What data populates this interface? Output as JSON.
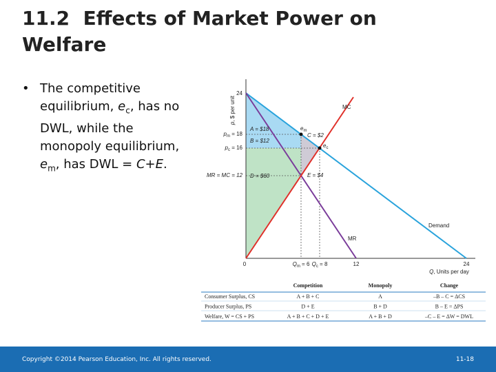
{
  "header": {
    "title": "11.2  Effects of Market Power on Welfare"
  },
  "bullet": {
    "parts": [
      {
        "text": "The competitive equilibrium, "
      },
      {
        "text": "e",
        "italic": true
      },
      {
        "text": "c",
        "sub": true
      },
      {
        "text": ", has no DWL, while the monopoly equilibrium, "
      },
      {
        "text": "e",
        "italic": true
      },
      {
        "text": "m",
        "sub": true
      },
      {
        "text": ", has DWL = "
      },
      {
        "text": "C+E",
        "italic": true
      },
      {
        "text": "."
      }
    ]
  },
  "graph": {
    "labels": [
      {
        "parts": [
          {
            "text": "p",
            "italic": true
          },
          {
            "text": ", $ per unit"
          }
        ]
      },
      {
        "parts": [
          {
            "text": "24"
          }
        ]
      },
      {
        "parts": [
          {
            "text": "p",
            "italic": true
          },
          {
            "text": "m",
            "sub": true
          },
          {
            "text": " = 18"
          }
        ]
      },
      {
        "parts": [
          {
            "text": "p",
            "italic": true
          },
          {
            "text": "c",
            "sub": true
          },
          {
            "text": " = 16"
          }
        ]
      },
      {
        "parts": [
          {
            "text": "MR = MC = 12",
            "italic": true
          }
        ]
      },
      {
        "parts": [
          {
            "text": "A = $18",
            "italic": true
          }
        ]
      },
      {
        "parts": [
          {
            "text": "B = $12",
            "italic": true
          }
        ]
      },
      {
        "parts": [
          {
            "text": "D = $60",
            "italic": true
          }
        ]
      },
      {
        "parts": [
          {
            "text": "C = $2",
            "italic": true
          }
        ]
      },
      {
        "parts": [
          {
            "text": "E = $4",
            "italic": true
          }
        ]
      },
      {
        "parts": [
          {
            "text": "e",
            "italic": true
          },
          {
            "text": "m",
            "sub": true
          }
        ]
      },
      {
        "parts": [
          {
            "text": "e",
            "italic": true
          },
          {
            "text": "c",
            "sub": true
          }
        ]
      },
      {
        "parts": [
          {
            "text": "MC"
          }
        ]
      },
      {
        "parts": [
          {
            "text": "MR"
          }
        ]
      },
      {
        "parts": [
          {
            "text": "Demand"
          }
        ]
      },
      {
        "parts": [
          {
            "text": "0"
          }
        ]
      },
      {
        "parts": [
          {
            "text": "Q",
            "italic": true
          },
          {
            "text": "m",
            "sub": true
          },
          {
            "text": " = 6"
          }
        ]
      },
      {
        "parts": [
          {
            "text": "Q",
            "italic": true
          },
          {
            "text": "c",
            "sub": true
          },
          {
            "text": " = 8"
          }
        ]
      },
      {
        "parts": [
          {
            "text": "12"
          }
        ]
      },
      {
        "parts": [
          {
            "text": "24"
          }
        ]
      },
      {
        "parts": [
          {
            "text": "Q",
            "italic": true
          },
          {
            "text": ", Units per day"
          }
        ]
      }
    ]
  },
  "table": {
    "header": [
      "Competition",
      "Monopoly",
      "Change"
    ],
    "rows": [
      [
        "Consumer Surplus, CS",
        "A + B + C",
        "A",
        "–B – C = ΔCS"
      ],
      [
        "Producer Surplus, PS",
        "D + E",
        "B + D",
        "B – E = ΔPS"
      ],
      [
        "Welfare, W = CS + PS",
        "A + B + C + D + E",
        "A + B + D",
        "–C – E = ΔW = DWL"
      ]
    ]
  },
  "footer": {
    "copyright": "Copyright ©2014 Pearson Education, Inc. All rights reserved.",
    "page": "11-18"
  }
}
